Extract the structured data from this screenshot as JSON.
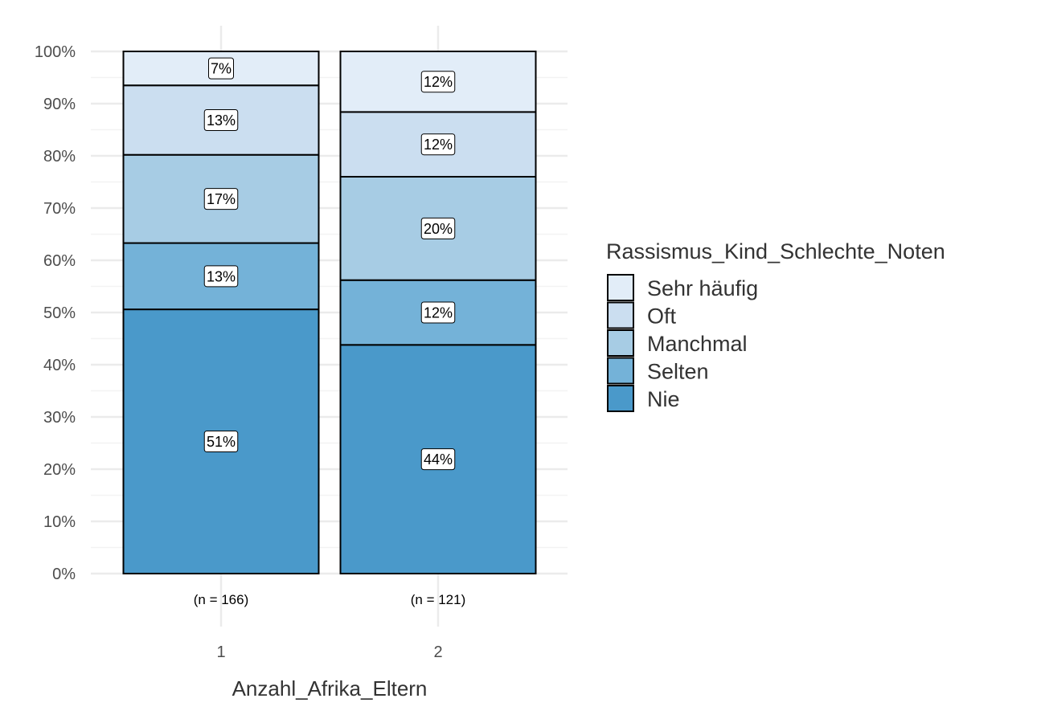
{
  "chart_data": {
    "type": "bar",
    "stacked": true,
    "percent": true,
    "categories": [
      "1",
      "2"
    ],
    "category_notes": [
      "(n = 166)",
      "(n = 121)"
    ],
    "xlabel": "Anzahl_Afrika_Eltern",
    "ylabel": "",
    "ylim": [
      0,
      100
    ],
    "yticks": [
      "0%",
      "10%",
      "20%",
      "30%",
      "40%",
      "50%",
      "60%",
      "70%",
      "80%",
      "90%",
      "100%"
    ],
    "legend_title": "Rassismus_Kind_Schlechte_Noten",
    "legend_position": "right",
    "grid": true,
    "series": [
      {
        "name": "Nie",
        "color": "#4a99ca",
        "values": [
          50.6,
          43.8
        ],
        "labels": [
          "51%",
          "44%"
        ]
      },
      {
        "name": "Selten",
        "color": "#74b2d8",
        "values": [
          12.7,
          12.4
        ],
        "labels": [
          "13%",
          "12%"
        ]
      },
      {
        "name": "Manchmal",
        "color": "#a7cce4",
        "values": [
          16.9,
          19.8
        ],
        "labels": [
          "17%",
          "20%"
        ]
      },
      {
        "name": "Oft",
        "color": "#cbdef0",
        "values": [
          13.3,
          12.4
        ],
        "labels": [
          "13%",
          "12%"
        ]
      },
      {
        "name": "Sehr häufig",
        "color": "#e2edf8",
        "values": [
          6.5,
          11.6
        ],
        "labels": [
          "7%",
          "12%"
        ]
      }
    ]
  }
}
